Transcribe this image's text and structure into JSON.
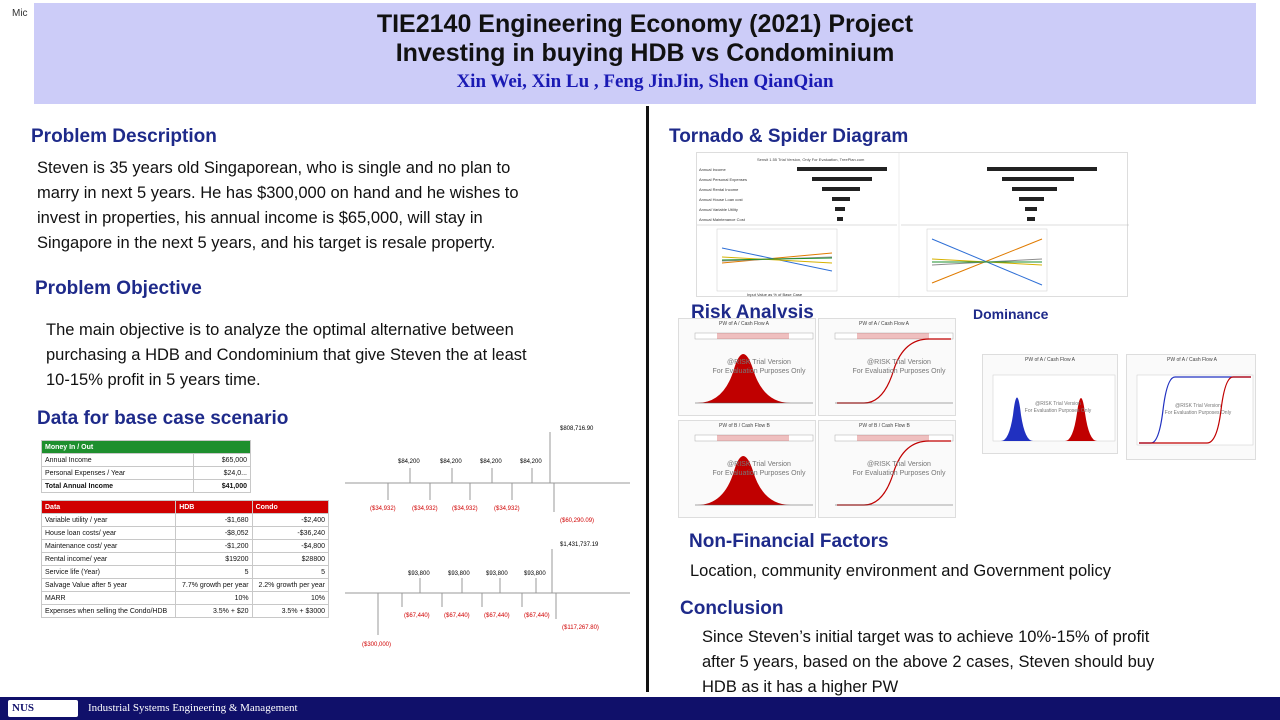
{
  "corner_label": "Mic",
  "header": {
    "title_line1": "TIE2140 Engineering Economy (2021) Project",
    "title_line2": "Investing in buying HDB vs Condominium",
    "authors": "Xin Wei,   Xin Lu ,  Feng JinJin,  Shen QianQian"
  },
  "left": {
    "problem_description": {
      "title": "Problem Description",
      "lines": [
        "Steven is 35 years old Singaporean, who is single and no plan to",
        "marry in next 5 years. He has $300,000 on hand and he wishes to",
        "invest in properties, his annual  income is $65,000, will stay in",
        "Singapore in the next 5 years, and his target is resale property."
      ]
    },
    "problem_objective": {
      "title": "Problem Objective",
      "lines": [
        "The main objective is to analyze the optimal alternative between",
        "purchasing a HDB and Condominium that give Steven the at least",
        "10-15% profit in 5 years time."
      ]
    },
    "base_case": {
      "title": "Data for base case scenario",
      "money_table": {
        "header": "Money In / Out",
        "rows": [
          [
            "Annual Income",
            "$65,000"
          ],
          [
            "Personal Expenses / Year",
            "$24,0..."
          ],
          [
            "Total Annual Income",
            "$41,000"
          ]
        ]
      },
      "data_table": {
        "headers": [
          "Data",
          "HDB",
          "Condo"
        ],
        "rows": [
          [
            "Variable utility / year",
            "-$1,680",
            "-$2,400"
          ],
          [
            "House loan costs/ year",
            "-$8,052",
            "-$36,240"
          ],
          [
            "Maintenance cost/ year",
            "-$1,200",
            "-$4,800"
          ],
          [
            "Rental income/ year",
            "$19200",
            "$28800"
          ],
          [
            "Service life (Year)",
            "5",
            "5"
          ],
          [
            "Salvage Value after 5 year",
            "7.7% growth per year",
            "2.2% growth per year"
          ],
          [
            "MARR",
            "10%",
            "10%"
          ],
          [
            "Expenses when selling the Condo/HDB",
            "3.5% + $20",
            "3.5% + $3000"
          ]
        ]
      },
      "cashflow_hdb": {
        "up": [
          "$84,200",
          "$84,200",
          "$84,200",
          "$84,200"
        ],
        "final_up": "$808,716.90",
        "down": [
          "($34,932)",
          "($34,932)",
          "($34,932)",
          "($34,932)"
        ],
        "final_down": "($60,290.09)"
      },
      "cashflow_condo": {
        "up": [
          "$93,800",
          "$93,800",
          "$93,800",
          "$93,800"
        ],
        "final_up": "$1,431,737.19",
        "down": [
          "($67,440)",
          "($67,440)",
          "($67,440)",
          "($67,440)"
        ],
        "final_down": "($117,267.80)",
        "initial": "($300,000)"
      }
    }
  },
  "right": {
    "tornado": {
      "title": "Tornado & Spider Diagram",
      "watermark": "Sensit 1.55 Trial Version, Only For Evaluation, TreePlan.com",
      "bar_labels": [
        "Annual Income",
        "Annual Personal Expenses",
        "Annual Rental Income",
        "Annual House Loan cost",
        "Annual Variable Utility",
        "Annual Maintenance Cost"
      ],
      "spider_axis": "Input Value as % of Base Case"
    },
    "risk": {
      "title": "Risk Analysis",
      "dominance_title": "Dominance",
      "charts": [
        {
          "title": "PW of A / Cash Flow A",
          "low": "$194,675",
          "high": "$216,169",
          "p_left": "5.0%",
          "p_mid": "90.0%",
          "p_right": "5.0%",
          "color": "#c00000"
        },
        {
          "title": "PW of A / Cash Flow A",
          "low": "$194,675",
          "high": "$216,169",
          "p_left": "5.0%",
          "p_mid": "90.0%",
          "p_right": "5.0%",
          "color": "#c00000"
        },
        {
          "title": "PW of B / Cash Flow B",
          "low": "$26,050",
          "high": "$72,661",
          "p_left": "5.0%",
          "p_mid": "90.0%",
          "p_right": "5.0%",
          "color": "#c00000"
        },
        {
          "title": "PW of B / Cash Flow B",
          "low": "$26,050",
          "high": "$72,661",
          "p_left": "5.0%",
          "p_mid": "90.0%",
          "p_right": "5.0%",
          "color": "#c00000"
        }
      ],
      "watermark_line1": "@RISK Trial Version",
      "watermark_line2": "For Evaluation Purposes Only",
      "dominance_charts": [
        {
          "title": "PW of A / Cash Flow A"
        },
        {
          "title": "PW of A / Cash Flow A"
        }
      ]
    },
    "non_financial": {
      "title": "Non-Financial   Factors",
      "text": "Location, community  environment    and Government  policy"
    },
    "conclusion": {
      "title": "Conclusion",
      "lines": [
        "Since Steven’s initial target was to achieve 10%-15% of profit",
        "after 5 years, based on the above 2 cases, Steven should buy",
        "HDB as it has a higher PW"
      ]
    }
  },
  "footer": {
    "logo": "NUS",
    "text": "Industrial Systems Engineering & Management"
  },
  "colors": {
    "header_bg": "#ccccf8",
    "section_title": "#1e2a8a",
    "authors": "#1a1ab4",
    "footer_bg": "#10106a",
    "table_green": "#1e8f2e",
    "table_red": "#d00000"
  }
}
